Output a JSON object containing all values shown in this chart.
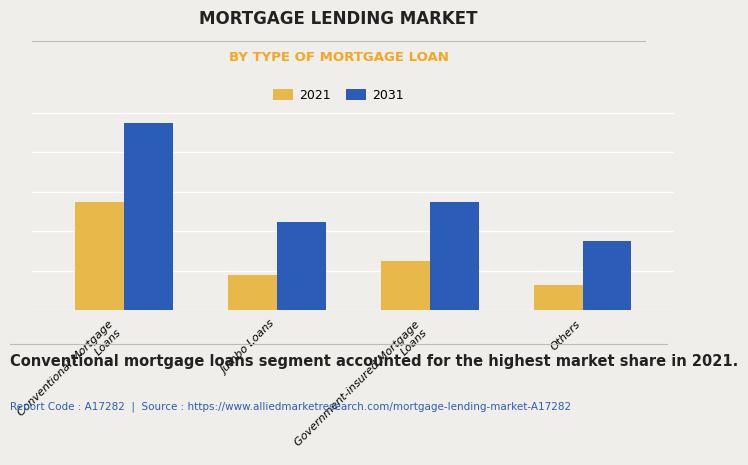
{
  "title": "MORTGAGE LENDING MARKET",
  "subtitle": "BY TYPE OF MORTGAGE LOAN",
  "subtitle_color": "#F5A623",
  "background_color": "#f0eeea",
  "categories": [
    "Conventional Mortgage\nLoans",
    "Jumbo Loans",
    "Government-insured Mortgage\nLoans",
    "Others"
  ],
  "values_2021": [
    55,
    18,
    25,
    13
  ],
  "values_2031": [
    95,
    45,
    55,
    35
  ],
  "color_2021": "#E8B84B",
  "color_2031": "#2B5DB8",
  "legend_labels": [
    "2021",
    "2031"
  ],
  "footnote_bold": "Conventional mortgage loans segment accounted for the highest market share in 2021.",
  "report_code": "Report Code : A17282",
  "source_text": "Source : https://www.alliedmarketresearch.com/mortgage-lending-market-A17282",
  "source_color": "#2B5DB8",
  "bar_width": 0.32,
  "ylim": [
    0,
    110
  ],
  "title_fontsize": 12,
  "subtitle_fontsize": 9.5,
  "tick_label_fontsize": 8,
  "legend_fontsize": 9,
  "footnote_fontsize": 10.5
}
